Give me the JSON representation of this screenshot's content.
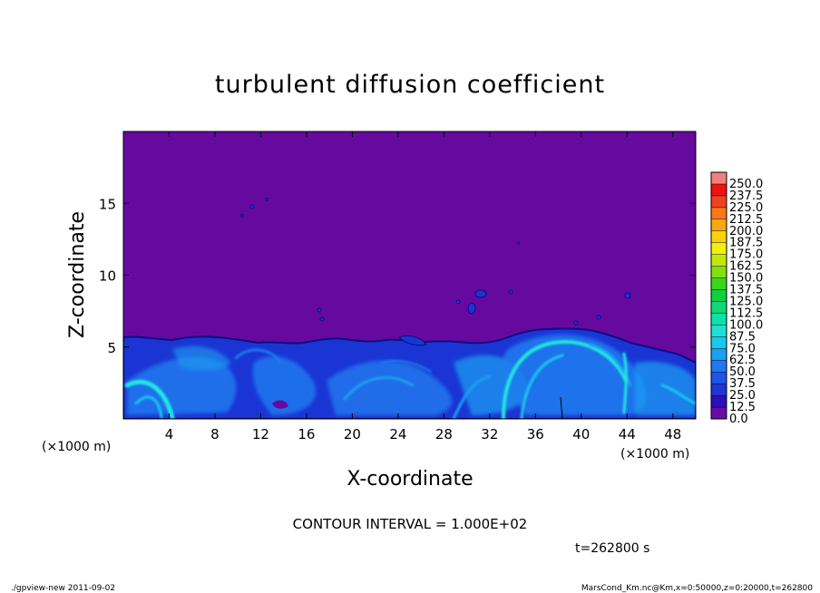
{
  "chart_data": {
    "type": "heatmap",
    "title": "turbulent diffusion coefficient",
    "xlabel": "X-coordinate",
    "ylabel": "Z-coordinate",
    "x_unit": "(×1000 m)",
    "z_unit": "(×1000 m)",
    "xlim": [
      0,
      50
    ],
    "ylim": [
      0,
      20
    ],
    "x_ticks": [
      4,
      8,
      12,
      16,
      20,
      24,
      28,
      32,
      36,
      40,
      44,
      48
    ],
    "y_ticks": [
      5,
      10,
      15
    ],
    "colorbar": {
      "levels": [
        "0.0",
        "12.5",
        "25.0",
        "37.5",
        "50.0",
        "62.5",
        "75.0",
        "87.5",
        "100.0",
        "112.5",
        "125.0",
        "137.5",
        "150.0",
        "162.5",
        "175.0",
        "187.5",
        "200.0",
        "212.5",
        "225.0",
        "237.5",
        "250.0"
      ],
      "colors": [
        "#6a0aa8",
        "#2c0fb8",
        "#1f35d6",
        "#1c55e8",
        "#1e78f0",
        "#1aa0f2",
        "#1ac8ec",
        "#20e0d6",
        "#10e0a8",
        "#10d878",
        "#10d040",
        "#38d818",
        "#80e010",
        "#c0e810",
        "#f0f010",
        "#f8d010",
        "#f8a810",
        "#f87818",
        "#f04020",
        "#f01010",
        "#f08080"
      ]
    },
    "contour_interval": "CONTOUR INTERVAL = 1.000E+02",
    "time": "t=262800 s"
  },
  "footer": {
    "left": "./gpview-new  2011-09-02",
    "right": "MarsCond_Km.nc@Km,x=0:50000,z=0:20000,t=262800"
  },
  "colors": {
    "background_field": "#66099e",
    "boundary_line": "#0c0c80",
    "turbulence_low": "#1a35d4",
    "turbulence_mid": "#1f7df0",
    "turbulence_high": "#20e8e0"
  }
}
